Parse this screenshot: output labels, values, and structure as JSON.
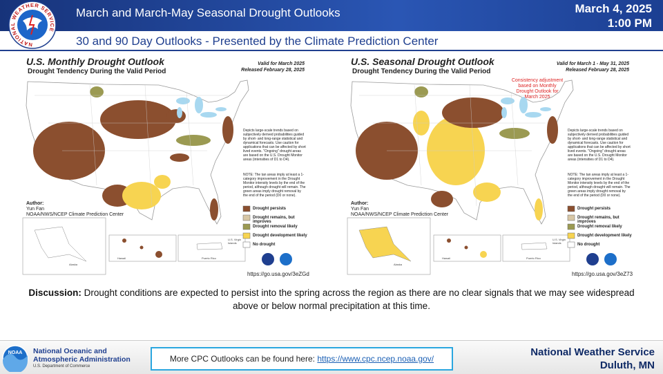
{
  "header": {
    "logo_text": "NATIONAL WEATHER SERVICE",
    "title": "March and March-May Seasonal Drought Outlooks",
    "date": "March 4, 2025",
    "time": "1:00 PM",
    "subtitle": "30 and 90 Day Outlooks - Presented by the Climate Prediction Center"
  },
  "maps": [
    {
      "title": "U.S. Monthly Drought Outlook",
      "subtitle": "Drought Tendency During the Valid Period",
      "valid": "Valid for March 2025",
      "released": "Released February 28, 2025",
      "description": "Depicts large-scale trends based on subjectively derived probabilities guided by short- and long-range statistical and dynamical forecasts. Use caution for applications that can be affected by short lived events. \"Ongoing\" drought areas are based on the U.S. Drought Monitor areas (intensities of D1 to D4).",
      "note_text": "NOTE: The tan areas imply at least a 1-category improvement in the Drought Monitor intensity levels by the end of the period, although drought will remain. The green areas imply drought removal by the end of the period (D0 or none).",
      "author_label": "Author:",
      "author_name": "Yun Fan",
      "author_org": "NOAA/NWS/NCEP Climate Prediction Center",
      "legend": [
        "Drought persists",
        "Drought remains, but improves",
        "Drought removal likely",
        "Drought development likely",
        "No drought"
      ],
      "insets": [
        "Alaska",
        "Hawaii",
        "Puerto Rico",
        "U.S. Virgin Islands"
      ],
      "url": "https://go.usa.gov/3eZGd"
    },
    {
      "title": "U.S. Seasonal Drought Outlook",
      "subtitle": "Drought Tendency During the Valid Period",
      "valid": "Valid for March 1 - May 31, 2025",
      "released": "Released February 28, 2025",
      "adjustment_note": "Consistency adjustment based on Monthly Drought Outlook for March 2025",
      "description": "Depicts large-scale trends based on subjectively derived probabilities guided by short- and long-range statistical and dynamical forecasts. Use caution for applications that can be affected by short lived events. \"Ongoing\" drought areas are based on the U.S. Drought Monitor areas (intensities of D1 to D4).",
      "note_text": "NOTE: The tan areas imply at least a 1-category improvement in the Drought Monitor intensity levels by the end of the period, although drought will remain. The green areas imply drought removal by the end of the period (D0 or none).",
      "author_label": "Author:",
      "author_name": "Yun Fan",
      "author_org": "NOAA/NWS/NCEP Climate Prediction Center",
      "legend": [
        "Drought persists",
        "Drought remains, but improves",
        "Drought removal likely",
        "Drought development likely",
        "No drought"
      ],
      "insets": [
        "Alaska",
        "Hawaii",
        "Puerto Rico",
        "U.S. Virgin Islands"
      ],
      "url": "https://go.usa.gov/3eZ73"
    }
  ],
  "discussion": {
    "label": "Discussion:",
    "text": "Drought conditions are expected to persist into the spring across the region as there are no clear signals that we may see widespread above or below normal precipitation at this time."
  },
  "footer": {
    "org_line1": "National Oceanic and",
    "org_line2": "Atmospheric Administration",
    "department": "U.S. Department of Commerce",
    "noaa_logo": "NOAA",
    "cpc_text": "More CPC Outlooks can be found here:",
    "cpc_link": "https://www.cpc.ncep.noaa.gov/",
    "office": "National Weather Service",
    "location": "Duluth, MN"
  }
}
